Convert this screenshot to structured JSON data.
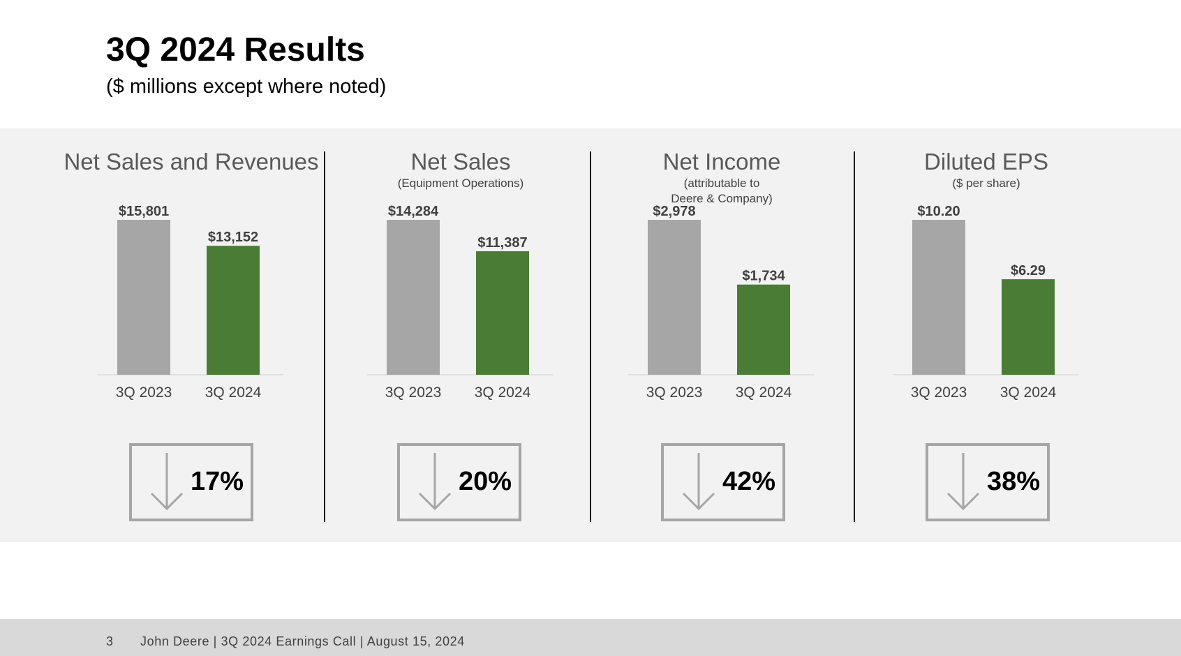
{
  "header": {
    "title": "3Q 2024 Results",
    "subtitle": "($ millions except where noted)"
  },
  "colors": {
    "prior_year_bar": "#a6a6a6",
    "current_year_bar": "#4a7c35",
    "band_background": "#f2f2f2",
    "footer_background": "#d9d9d9"
  },
  "icons": {
    "change_indicator": "down-arrow-icon"
  },
  "chart_data": [
    {
      "type": "bar",
      "title": "Net Sales and Revenues",
      "subtitle": "",
      "categories": [
        "3Q 2023",
        "3Q 2024"
      ],
      "values": [
        15801,
        13152
      ],
      "value_labels": [
        "$15,801",
        "$13,152"
      ],
      "change": "17%",
      "direction": "down"
    },
    {
      "type": "bar",
      "title": "Net Sales",
      "subtitle": "(Equipment Operations)",
      "categories": [
        "3Q 2023",
        "3Q 2024"
      ],
      "values": [
        14284,
        11387
      ],
      "value_labels": [
        "$14,284",
        "$11,387"
      ],
      "change": "20%",
      "direction": "down"
    },
    {
      "type": "bar",
      "title": "Net Income",
      "subtitle": "(attributable to Deere & Company)",
      "subtitle_lines": [
        "(attributable to",
        "Deere & Company)"
      ],
      "categories": [
        "3Q 2023",
        "3Q 2024"
      ],
      "values": [
        2978,
        1734
      ],
      "value_labels": [
        "$2,978",
        "$1,734"
      ],
      "change": "42%",
      "direction": "down"
    },
    {
      "type": "bar",
      "title": "Diluted EPS",
      "subtitle": "($ per share)",
      "categories": [
        "3Q 2023",
        "3Q 2024"
      ],
      "values": [
        10.2,
        6.29
      ],
      "value_labels": [
        "$10.20",
        "$6.29"
      ],
      "change": "38%",
      "direction": "down"
    }
  ],
  "footer": {
    "page_number": "3",
    "text": "John Deere | 3Q 2024 Earnings Call | August 15, 2024"
  }
}
